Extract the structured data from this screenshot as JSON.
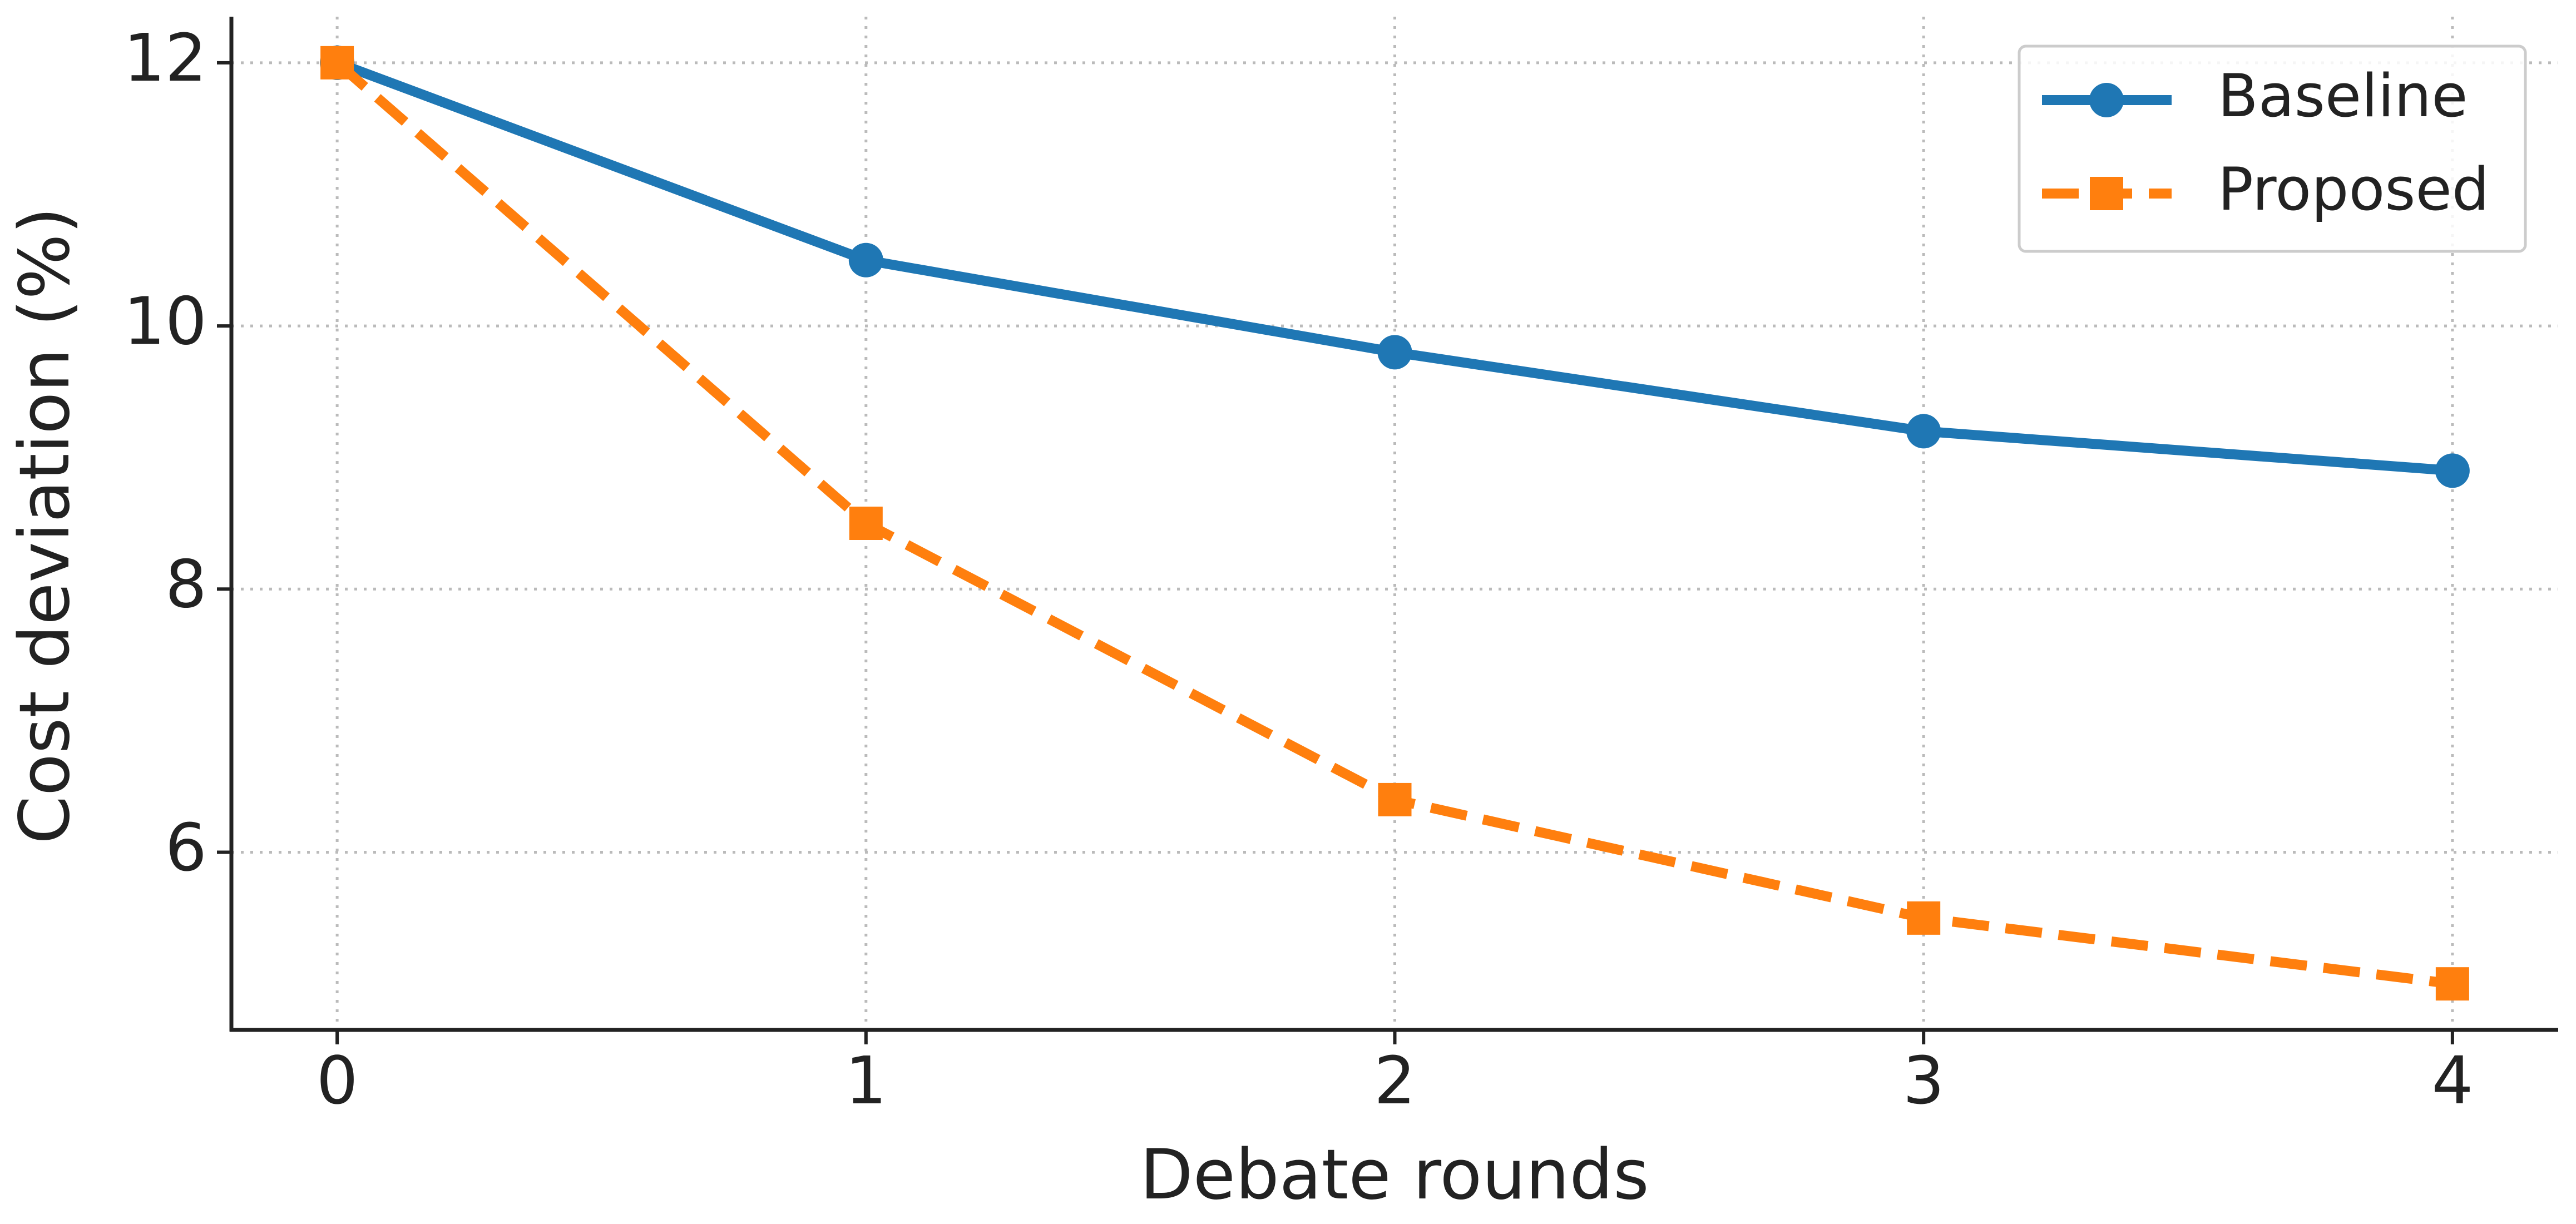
{
  "chart_data": {
    "type": "line",
    "x": [
      0,
      1,
      2,
      3,
      4
    ],
    "series": [
      {
        "name": "Baseline",
        "color": "#1f77b4",
        "marker": "circle",
        "dash": "solid",
        "values": [
          12,
          10.5,
          9.8,
          9.2,
          8.9
        ]
      },
      {
        "name": "Proposed",
        "color": "#ff7f0e",
        "marker": "square",
        "dash": "dashed",
        "values": [
          12,
          8.5,
          6.4,
          5.5,
          5.0
        ]
      }
    ],
    "xlabel": "Debate rounds",
    "ylabel": "Cost deviation (%)",
    "xlim": [
      -0.2,
      4.2
    ],
    "ylim": [
      4.65,
      12.35
    ],
    "xticks": [
      0,
      1,
      2,
      3,
      4
    ],
    "yticks": [
      6,
      8,
      10,
      12
    ],
    "grid": true,
    "legend": "upper right"
  }
}
